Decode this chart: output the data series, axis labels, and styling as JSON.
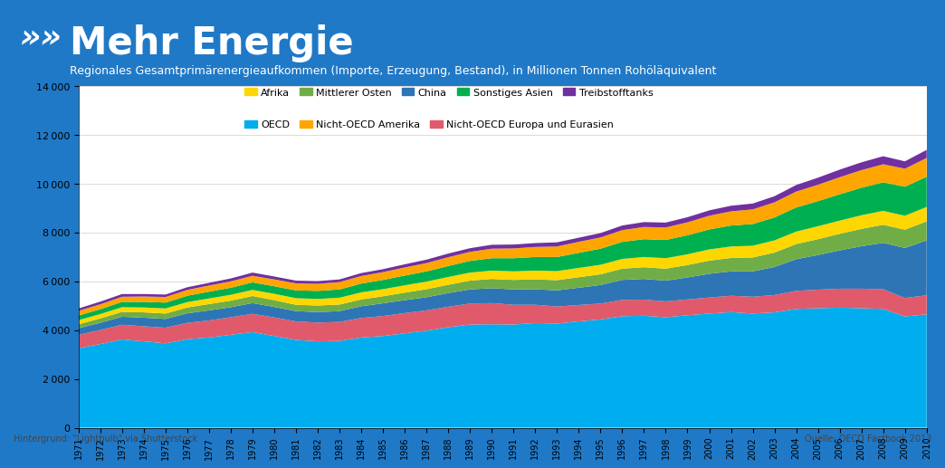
{
  "title": "Mehr Energie",
  "subtitle": "Regionales Gesamtprimärenergieaufkommen (Importe, Erzeugung, Bestand), in Millionen Tonnen Rohöläquivalent",
  "footer_left": "Hintergrund: \"Lightbulb\" via Shutterstock",
  "footer_right": "Quelle: OECD Factbook 2013",
  "years": [
    1971,
    1972,
    1973,
    1974,
    1975,
    1976,
    1977,
    1978,
    1979,
    1980,
    1981,
    1982,
    1983,
    1984,
    1985,
    1986,
    1987,
    1988,
    1989,
    1990,
    1991,
    1992,
    1993,
    1994,
    1995,
    1996,
    1997,
    1998,
    1999,
    2000,
    2001,
    2002,
    2003,
    2004,
    2005,
    2006,
    2007,
    2008,
    2009,
    2010
  ],
  "series": {
    "OECD": [
      3260,
      3430,
      3620,
      3540,
      3460,
      3630,
      3700,
      3810,
      3920,
      3760,
      3600,
      3540,
      3560,
      3700,
      3760,
      3870,
      3980,
      4120,
      4230,
      4240,
      4230,
      4290,
      4270,
      4360,
      4440,
      4570,
      4590,
      4530,
      4610,
      4680,
      4740,
      4680,
      4730,
      4870,
      4900,
      4920,
      4900,
      4870,
      4560,
      4650
    ],
    "Nicht_OECD_Europa_Eurasien": [
      550,
      580,
      600,
      620,
      640,
      670,
      700,
      720,
      750,
      760,
      760,
      770,
      780,
      800,
      820,
      830,
      830,
      840,
      860,
      870,
      810,
      750,
      700,
      670,
      650,
      670,
      660,
      650,
      650,
      660,
      670,
      690,
      710,
      740,
      760,
      780,
      800,
      810,
      760,
      780
    ],
    "China": [
      270,
      290,
      330,
      350,
      360,
      390,
      410,
      410,
      440,
      430,
      420,
      430,
      440,
      480,
      520,
      530,
      540,
      560,
      580,
      610,
      630,
      640,
      660,
      710,
      760,
      820,
      850,
      850,
      900,
      970,
      1000,
      1040,
      1150,
      1300,
      1420,
      1570,
      1740,
      1900,
      2050,
      2250
    ],
    "Mittlerer_Osten": [
      160,
      180,
      200,
      220,
      220,
      240,
      260,
      270,
      290,
      280,
      260,
      270,
      270,
      280,
      290,
      310,
      330,
      340,
      360,
      380,
      390,
      400,
      420,
      430,
      440,
      460,
      480,
      490,
      510,
      540,
      550,
      570,
      590,
      620,
      650,
      680,
      710,
      740,
      750,
      780
    ],
    "Afrika": [
      170,
      180,
      190,
      200,
      210,
      220,
      230,
      240,
      250,
      260,
      270,
      270,
      280,
      290,
      290,
      300,
      310,
      320,
      330,
      340,
      350,
      360,
      370,
      380,
      390,
      400,
      420,
      430,
      440,
      460,
      470,
      480,
      500,
      510,
      530,
      540,
      560,
      570,
      570,
      590
    ],
    "Sonstiges_Asien": [
      190,
      200,
      220,
      230,
      240,
      260,
      280,
      290,
      310,
      310,
      320,
      330,
      340,
      360,
      380,
      400,
      420,
      450,
      480,
      510,
      540,
      560,
      580,
      620,
      660,
      700,
      730,
      750,
      780,
      820,
      860,
      890,
      940,
      990,
      1030,
      1080,
      1130,
      1170,
      1190,
      1240
    ],
    "Nicht_OECD_Amerika": [
      190,
      200,
      210,
      220,
      230,
      240,
      250,
      260,
      270,
      280,
      290,
      290,
      300,
      310,
      320,
      330,
      340,
      360,
      370,
      390,
      400,
      410,
      430,
      450,
      460,
      480,
      500,
      510,
      530,
      560,
      580,
      600,
      620,
      650,
      670,
      700,
      720,
      740,
      740,
      770
    ],
    "Treibstofftanks": [
      100,
      110,
      110,
      100,
      100,
      110,
      110,
      120,
      130,
      120,
      110,
      110,
      110,
      120,
      120,
      130,
      140,
      150,
      150,
      160,
      160,
      160,
      170,
      170,
      180,
      190,
      200,
      200,
      210,
      220,
      230,
      240,
      250,
      270,
      290,
      310,
      320,
      330,
      300,
      330
    ]
  },
  "colors": {
    "OECD": "#00AEEF",
    "Nicht_OECD_Europa_Eurasien": "#E05A6B",
    "China": "#2E75B6",
    "Mittlerer_Osten": "#70AD47",
    "Afrika": "#FFD700",
    "Sonstiges_Asien": "#00B050",
    "Nicht_OECD_Amerika": "#FFA500",
    "Treibstofftanks": "#7030A0"
  },
  "legend_labels": {
    "Afrika": "Afrika",
    "Mittlerer_Osten": "Mittlerer Osten",
    "China": "China",
    "Sonstiges_Asien": "Sonstiges Asien",
    "Treibstofftanks": "Treibstofftanks",
    "OECD": "OECD",
    "Nicht_OECD_Amerika": "Nicht-OECD Amerika",
    "Nicht_OECD_Europa_Eurasien": "Nicht-OECD Europa und Eurasien"
  },
  "stack_order": [
    "OECD",
    "Nicht_OECD_Europa_Eurasien",
    "China",
    "Mittlerer_Osten",
    "Afrika",
    "Sonstiges_Asien",
    "Nicht_OECD_Amerika",
    "Treibstofftanks"
  ],
  "legend_row1": [
    "Afrika",
    "Mittlerer_Osten",
    "China",
    "Sonstiges_Asien",
    "Treibstofftanks"
  ],
  "legend_row2": [
    "OECD",
    "Nicht_OECD_Amerika",
    "Nicht_OECD_Europa_Eurasien"
  ],
  "ylim": [
    0,
    14000
  ],
  "yticks": [
    0,
    2000,
    4000,
    6000,
    8000,
    10000,
    12000,
    14000
  ],
  "header_bg_color": "#2079C7",
  "plot_bg_color": "#FFFFFF",
  "footer_bg_color": "#FFFFFF",
  "title_fontsize": 30,
  "subtitle_fontsize": 9,
  "tick_fontsize": 8,
  "xtick_fontsize": 7
}
